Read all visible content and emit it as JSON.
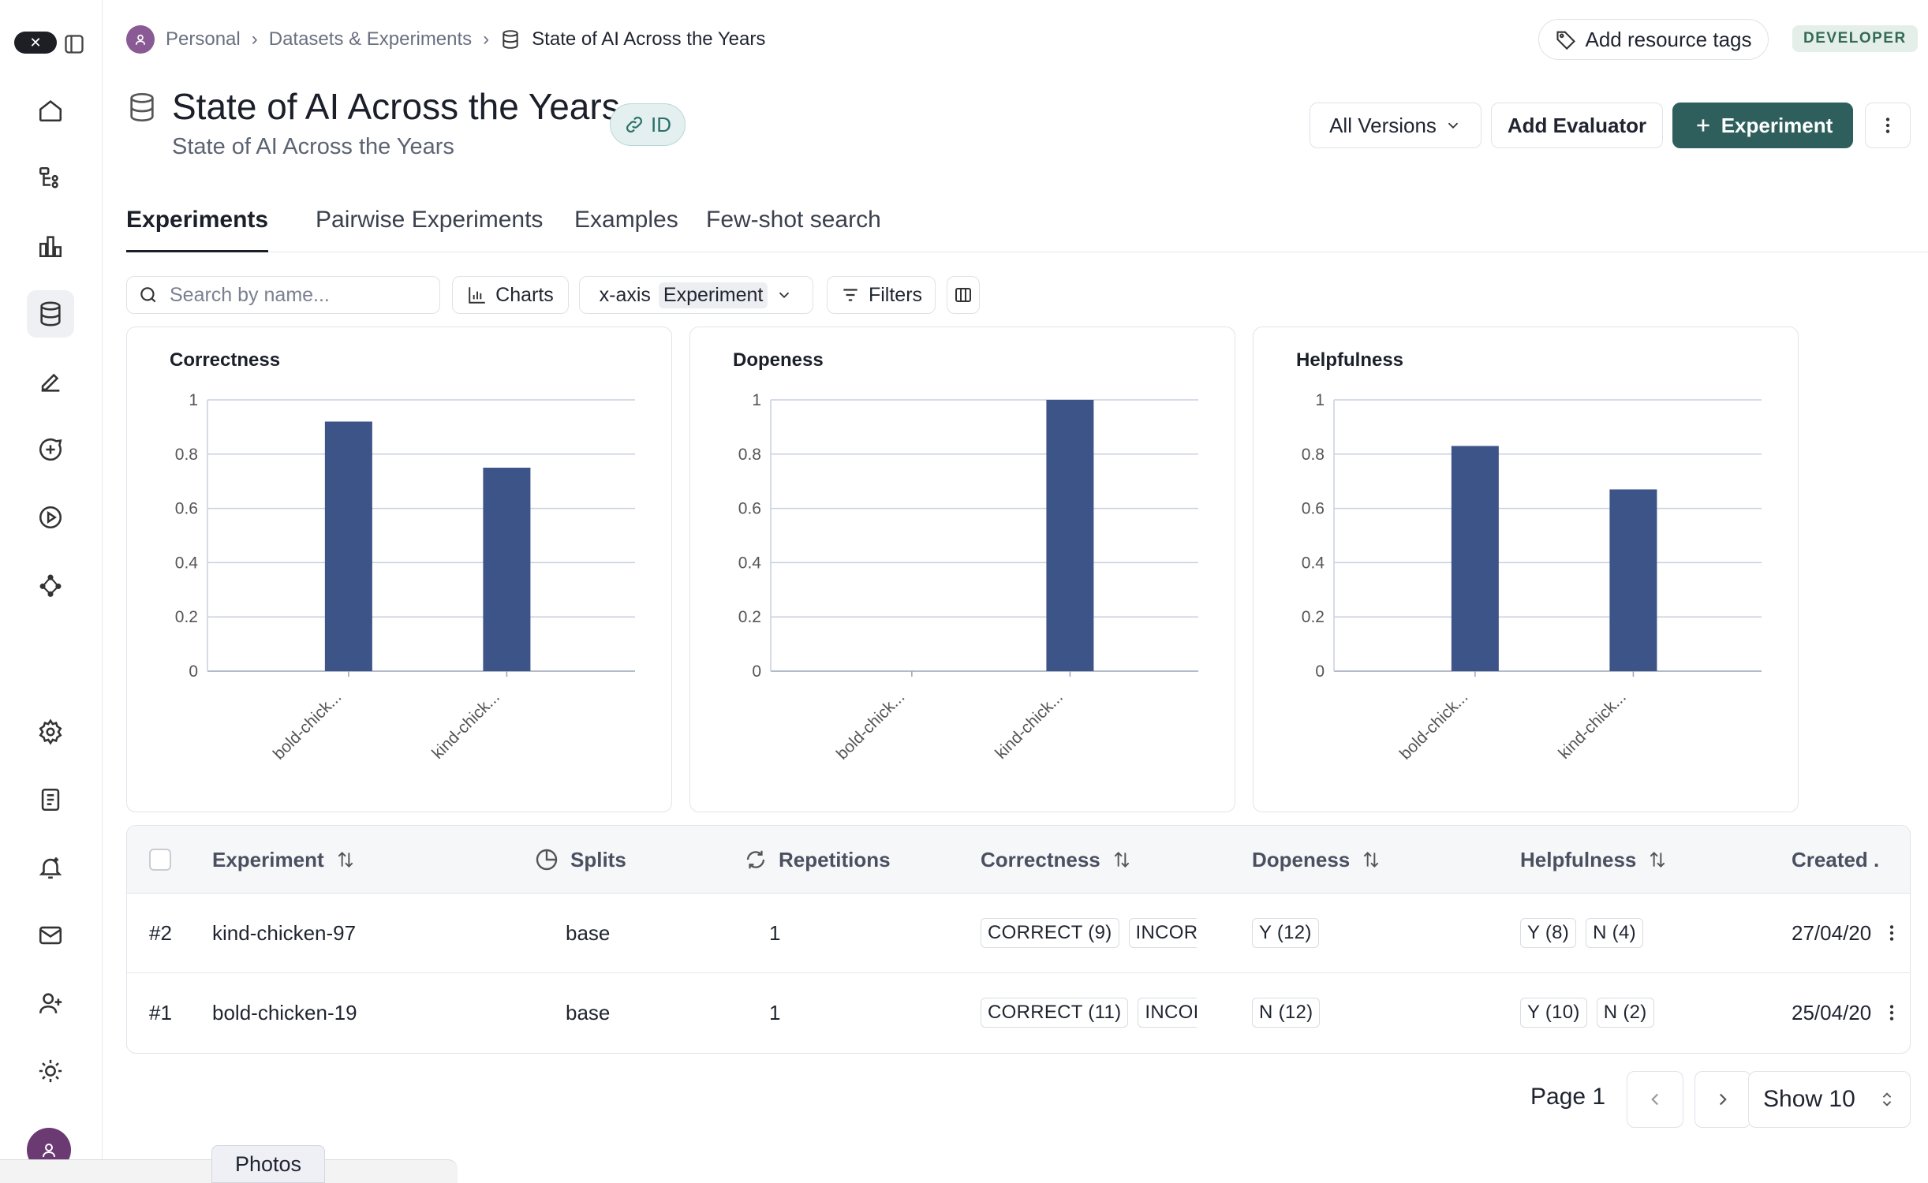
{
  "breadcrumb": {
    "workspace": "Personal",
    "section": "Datasets & Experiments",
    "current": "State of AI Across the Years"
  },
  "header_actions": {
    "tags_label": "Add resource tags",
    "badge": "DEVELOPER"
  },
  "dataset": {
    "title": "State of AI Across the Years",
    "subtitle": "State of AI Across the Years",
    "id_label": "ID"
  },
  "actions": {
    "versions": "All Versions",
    "add_evaluator": "Add Evaluator",
    "experiment": "Experiment"
  },
  "tabs": [
    "Experiments",
    "Pairwise Experiments",
    "Examples",
    "Few-shot search"
  ],
  "toolbar": {
    "search_placeholder": "Search by name...",
    "charts": "Charts",
    "xaxis_label": "x-axis",
    "xaxis_value": "Experiment",
    "filters": "Filters"
  },
  "chart_data": [
    {
      "type": "bar",
      "title": "Correctness",
      "categories": [
        "bold-chick...",
        "kind-chick..."
      ],
      "values": [
        0.92,
        0.75
      ],
      "ylim": [
        0,
        1
      ],
      "yticks": [
        "0",
        "0.2",
        "0.4",
        "0.6",
        "0.8",
        "1"
      ]
    },
    {
      "type": "bar",
      "title": "Dopeness",
      "categories": [
        "bold-chick...",
        "kind-chick..."
      ],
      "values": [
        0,
        1
      ],
      "ylim": [
        0,
        1
      ],
      "yticks": [
        "0",
        "0.2",
        "0.4",
        "0.6",
        "0.8",
        "1"
      ]
    },
    {
      "type": "bar",
      "title": "Helpfulness",
      "categories": [
        "bold-chick...",
        "kind-chick..."
      ],
      "values": [
        0.83,
        0.67
      ],
      "ylim": [
        0,
        1
      ],
      "yticks": [
        "0",
        "0.2",
        "0.4",
        "0.6",
        "0.8",
        "1"
      ]
    }
  ],
  "table": {
    "headers": {
      "experiment": "Experiment",
      "splits": "Splits",
      "repetitions": "Repetitions",
      "correctness": "Correctness",
      "dopeness": "Dopeness",
      "helpfulness": "Helpfulness",
      "created": "Created ."
    },
    "rows": [
      {
        "num": "#2",
        "name": "kind-chicken-97",
        "split": "base",
        "reps": "1",
        "correctness": [
          "CORRECT (9)",
          "INCORI"
        ],
        "dopeness": [
          "Y (12)"
        ],
        "helpfulness": [
          "Y (8)",
          "N (4)"
        ],
        "created": "27/04/20"
      },
      {
        "num": "#1",
        "name": "bold-chicken-19",
        "split": "base",
        "reps": "1",
        "correctness": [
          "CORRECT (11)",
          "INCOI"
        ],
        "dopeness": [
          "N (12)"
        ],
        "helpfulness": [
          "Y (10)",
          "N (2)"
        ],
        "created": "25/04/20"
      }
    ]
  },
  "pagination": {
    "page_label": "Page 1",
    "show_label": "Show 10"
  },
  "taskbar": {
    "photos": "Photos"
  },
  "colors": {
    "bar": "#3c5487",
    "accent": "#2e5f5c",
    "grid": "#c9cfe0"
  }
}
